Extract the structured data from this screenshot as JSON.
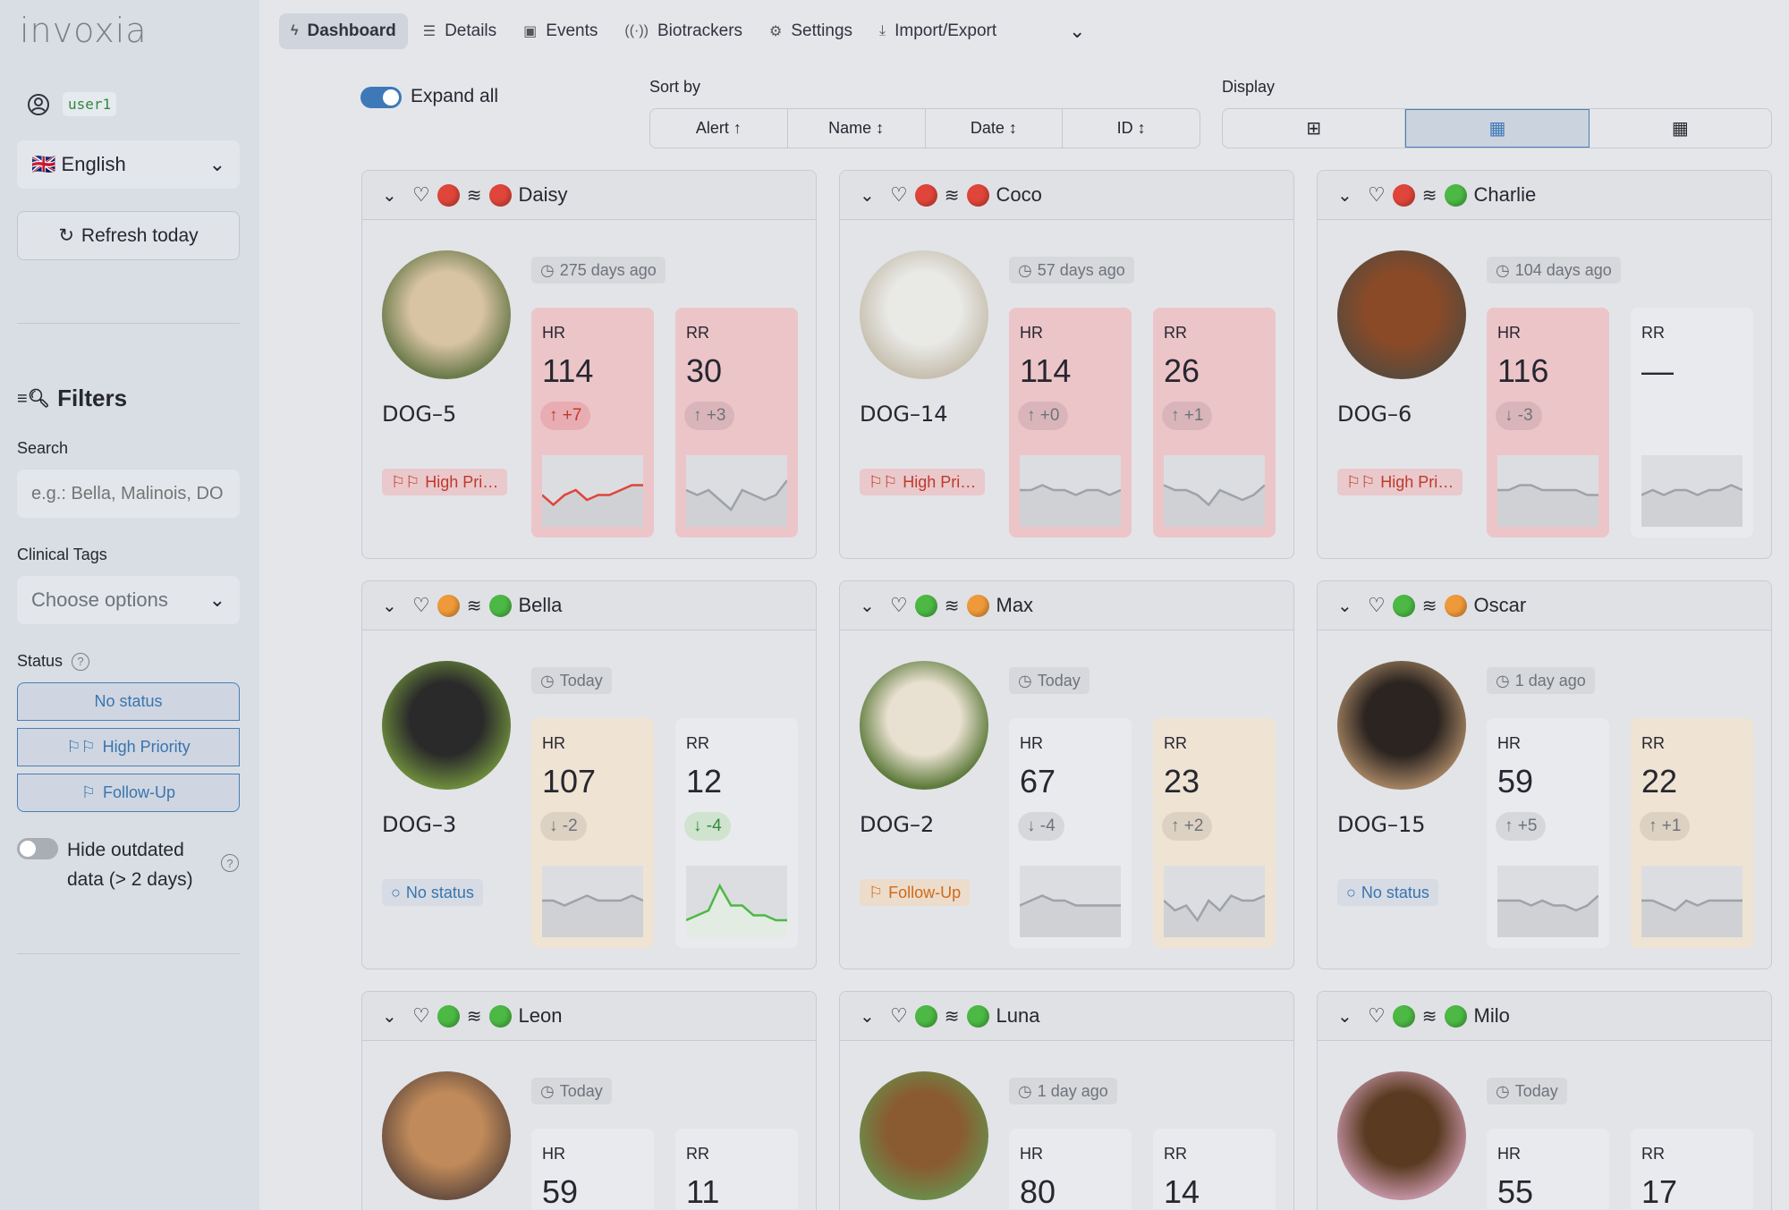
{
  "app": {
    "logo": "invoxia",
    "user": "user1"
  },
  "sidebar": {
    "language": "English",
    "language_flag": "🇬🇧",
    "refresh_label": "Refresh today",
    "filters_title": "Filters",
    "search_label": "Search",
    "search_placeholder": "e.g.: Bella, Malinois, DO",
    "clinical_tags_label": "Clinical Tags",
    "clinical_tags_placeholder": "Choose options",
    "status_label": "Status",
    "status_buttons": [
      "No status",
      "High Priority",
      "Follow-Up"
    ],
    "hide_outdated_line1": "Hide outdated",
    "hide_outdated_line2": "data (> 2 days)",
    "hide_outdated_on": false
  },
  "nav": {
    "tabs": [
      {
        "label": "Dashboard",
        "icon": "bolt-icon",
        "active": true
      },
      {
        "label": "Details",
        "icon": "list-icon"
      },
      {
        "label": "Events",
        "icon": "calendar-icon"
      },
      {
        "label": "Biotrackers",
        "icon": "signal-icon"
      },
      {
        "label": "Settings",
        "icon": "gear-icon"
      },
      {
        "label": "Import/Export",
        "icon": "download-icon"
      }
    ]
  },
  "toolbar": {
    "expand_all": "Expand all",
    "expand_all_on": true,
    "sort_by": "Sort by",
    "sort_options": [
      "Alert ↑",
      "Name ↕",
      "Date ↕",
      "ID ↕"
    ],
    "display": "Display",
    "display_selected": 1
  },
  "colors": {
    "red": "#e0453a",
    "orange": "#ef9a3a",
    "green": "#4cb944",
    "accent": "#3d79b8",
    "tile_red": "#ecc5c9",
    "tile_orange": "#efe3d3",
    "tile_neutral": "#e9eaed"
  },
  "dogs": [
    {
      "name": "Daisy",
      "id": "DOG–5",
      "hr_dot": "red",
      "rr_dot": "red",
      "time": "275 days ago",
      "status": "High Pri…",
      "status_type": "high",
      "hr": {
        "value": "114",
        "delta": "↑ +7",
        "level": "red",
        "delta_color": "red",
        "trend": [
          5,
          3,
          5,
          6,
          4,
          5,
          5,
          6,
          7,
          7
        ]
      },
      "rr": {
        "value": "30",
        "delta": "↑ +3",
        "level": "red",
        "trend": [
          6,
          5,
          6,
          4,
          2,
          6,
          5,
          4,
          5,
          8
        ]
      }
    },
    {
      "name": "Coco",
      "id": "DOG–14",
      "hr_dot": "red",
      "rr_dot": "red",
      "time": "57 days ago",
      "status": "High Pri…",
      "status_type": "high",
      "hr": {
        "value": "114",
        "delta": "↑ +0",
        "level": "red",
        "trend": [
          6,
          6,
          7,
          6,
          6,
          5,
          6,
          6,
          5,
          6
        ]
      },
      "rr": {
        "value": "26",
        "delta": "↑ +1",
        "level": "red",
        "trend": [
          7,
          6,
          6,
          5,
          3,
          6,
          5,
          4,
          5,
          7
        ]
      }
    },
    {
      "name": "Charlie",
      "id": "DOG–6",
      "hr_dot": "red",
      "rr_dot": "green",
      "time": "104 days ago",
      "status": "High Pri…",
      "status_type": "high",
      "hr": {
        "value": "116",
        "delta": "↓ -3",
        "level": "red",
        "trend": [
          6,
          6,
          7,
          7,
          6,
          6,
          6,
          6,
          5,
          5
        ]
      },
      "rr": {
        "value": "—",
        "delta": "",
        "level": "neutral",
        "trend": [
          5,
          6,
          5,
          6,
          6,
          5,
          6,
          6,
          7,
          6
        ]
      }
    },
    {
      "name": "Bella",
      "id": "DOG–3",
      "hr_dot": "orange",
      "rr_dot": "green",
      "time": "Today",
      "status": "No status",
      "status_type": "none",
      "hr": {
        "value": "107",
        "delta": "↓ -2",
        "level": "orange",
        "trend": [
          6,
          6,
          5,
          6,
          7,
          6,
          6,
          6,
          7,
          6
        ]
      },
      "rr": {
        "value": "12",
        "delta": "↓ -4",
        "level": "neutral",
        "delta_color": "green",
        "trend_color": "green",
        "trend": [
          2,
          3,
          4,
          9,
          5,
          5,
          3,
          3,
          2,
          2
        ]
      }
    },
    {
      "name": "Max",
      "id": "DOG–2",
      "hr_dot": "green",
      "rr_dot": "orange",
      "time": "Today",
      "status": "Follow-Up",
      "status_type": "follow",
      "hr": {
        "value": "67",
        "delta": "↓ -4",
        "level": "neutral",
        "trend": [
          5,
          6,
          7,
          6,
          6,
          5,
          5,
          5,
          5,
          5
        ]
      },
      "rr": {
        "value": "23",
        "delta": "↑ +2",
        "level": "orange",
        "trend": [
          6,
          4,
          5,
          2,
          6,
          4,
          7,
          6,
          6,
          7
        ]
      }
    },
    {
      "name": "Oscar",
      "id": "DOG–15",
      "hr_dot": "green",
      "rr_dot": "orange",
      "time": "1 day ago",
      "status": "No status",
      "status_type": "none",
      "hr": {
        "value": "59",
        "delta": "↑ +5",
        "level": "neutral",
        "trend": [
          6,
          6,
          6,
          5,
          6,
          5,
          5,
          4,
          5,
          7
        ]
      },
      "rr": {
        "value": "22",
        "delta": "↑ +1",
        "level": "orange",
        "trend": [
          6,
          6,
          5,
          4,
          6,
          5,
          6,
          6,
          6,
          6
        ]
      }
    },
    {
      "name": "Leon",
      "id": "",
      "hr_dot": "green",
      "rr_dot": "green",
      "time": "Today",
      "hr": {
        "value": "59",
        "level": "neutral"
      },
      "rr": {
        "value": "11",
        "level": "neutral"
      }
    },
    {
      "name": "Luna",
      "id": "",
      "hr_dot": "green",
      "rr_dot": "green",
      "time": "1 day ago",
      "hr": {
        "value": "80",
        "level": "neutral"
      },
      "rr": {
        "value": "14",
        "level": "neutral"
      }
    },
    {
      "name": "Milo",
      "id": "",
      "hr_dot": "green",
      "rr_dot": "green",
      "time": "Today",
      "hr": {
        "value": "55",
        "level": "neutral"
      },
      "rr": {
        "value": "17",
        "level": "neutral"
      }
    }
  ],
  "labels": {
    "hr": "HR",
    "rr": "RR"
  }
}
